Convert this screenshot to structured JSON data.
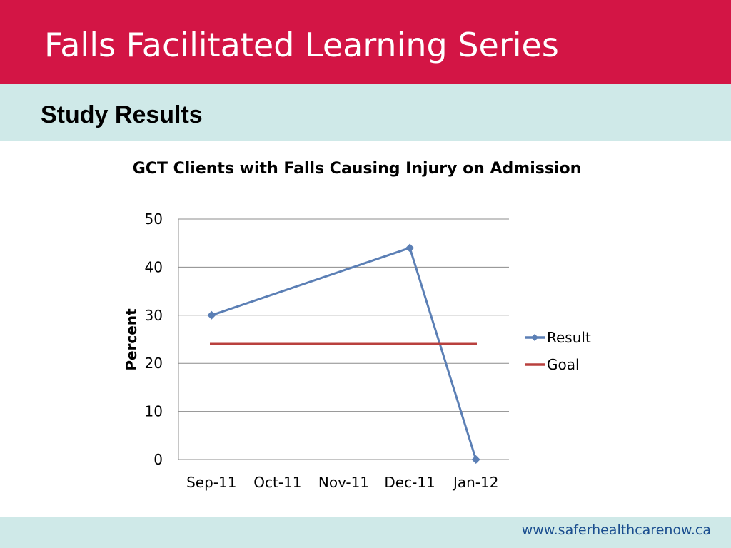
{
  "header": {
    "title": "Falls Facilitated Learning Series",
    "subtitle": "Study Results"
  },
  "footer": {
    "url": "www.saferhealthcarenow.ca"
  },
  "colors": {
    "banner": "#d31545",
    "band": "#cfe9e8",
    "result": "#5b7fb5",
    "goal": "#b9403e",
    "url": "#1a4e8f"
  },
  "chart_data": {
    "type": "line",
    "title": "GCT Clients with Falls Causing Injury on Admission",
    "ylabel": "Percent",
    "xlabel": "",
    "ylim": [
      0,
      50
    ],
    "yticks": [
      0,
      10,
      20,
      30,
      40,
      50
    ],
    "categories": [
      "Sep-11",
      "Oct-11",
      "Nov-11",
      "Dec-11",
      "Jan-12"
    ],
    "grid": true,
    "legend_position": "right",
    "series": [
      {
        "name": "Result",
        "marker": "diamond",
        "points": [
          {
            "x": "Sep-11",
            "y": 30
          },
          {
            "x": "Dec-11",
            "y": 44
          },
          {
            "x": "Jan-12",
            "y": 0
          }
        ]
      },
      {
        "name": "Goal",
        "marker": "none",
        "points": [
          {
            "x": "Sep-11",
            "y": 24
          },
          {
            "x": "Jan-12",
            "y": 24
          }
        ]
      }
    ]
  }
}
